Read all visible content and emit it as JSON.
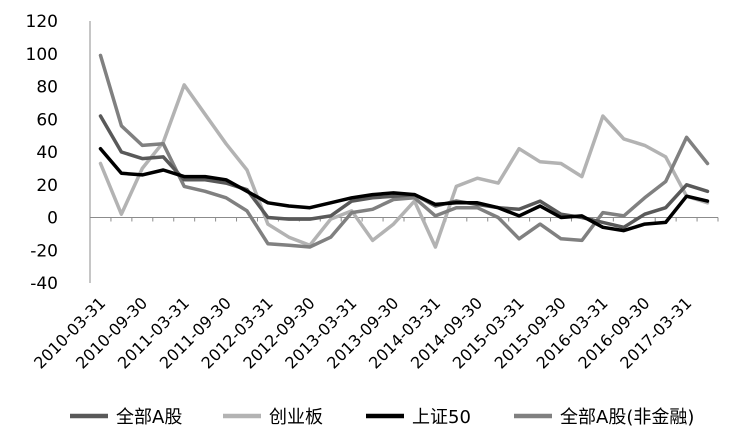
{
  "chart_data": {
    "type": "line",
    "title": "",
    "xlabel": "",
    "ylabel": "",
    "ylim": [
      -40,
      120
    ],
    "yticks": [
      -40,
      -20,
      0,
      20,
      40,
      60,
      80,
      100,
      120
    ],
    "grid": false,
    "legend_position": "bottom",
    "x": [
      "2010-03-31",
      "2010-06-30",
      "2010-09-30",
      "2010-12-31",
      "2011-03-31",
      "2011-06-30",
      "2011-09-30",
      "2011-12-31",
      "2012-03-31",
      "2012-06-30",
      "2012-09-30",
      "2012-12-31",
      "2013-03-31",
      "2013-06-30",
      "2013-09-30",
      "2013-12-31",
      "2014-03-31",
      "2014-06-30",
      "2014-09-30",
      "2014-12-31",
      "2015-03-31",
      "2015-06-30",
      "2015-09-30",
      "2015-12-31",
      "2016-03-31",
      "2016-06-30",
      "2016-09-30",
      "2016-12-31",
      "2017-03-31",
      "2017-06-30"
    ],
    "x_tick_labels": [
      "2010-03-31",
      "2010-09-30",
      "2011-03-31",
      "2011-09-30",
      "2012-03-31",
      "2012-09-30",
      "2013-03-31",
      "2013-09-30",
      "2014-03-31",
      "2014-09-30",
      "2015-03-31",
      "2015-09-30",
      "2016-03-31",
      "2016-09-30",
      "2017-03-31"
    ],
    "series": [
      {
        "name": "全部A股",
        "color": "#595959",
        "width": 3.5,
        "values": [
          62,
          40,
          36,
          37,
          23,
          23,
          21,
          17,
          0,
          -1,
          -1,
          1,
          10,
          12,
          13,
          14,
          7,
          10,
          8,
          6,
          5,
          10,
          2,
          0,
          -3,
          -6,
          2,
          6,
          20,
          16
        ]
      },
      {
        "name": "创业板",
        "color": "#b3b3b3",
        "width": 3.5,
        "values": [
          33,
          2,
          30,
          46,
          81,
          63,
          45,
          29,
          -4,
          -12,
          -17,
          -1,
          4,
          -14,
          -4,
          10,
          -18,
          19,
          24,
          21,
          42,
          34,
          33,
          25,
          62,
          48,
          44,
          37,
          13,
          9
        ]
      },
      {
        "name": "上证50",
        "color": "#000000",
        "width": 3.5,
        "values": [
          42,
          27,
          26,
          29,
          25,
          25,
          23,
          16,
          9,
          7,
          6,
          9,
          12,
          14,
          15,
          14,
          8,
          9,
          9,
          6,
          1,
          7,
          0,
          1,
          -6,
          -8,
          -4,
          -3,
          13,
          10
        ]
      },
      {
        "name": "全部A股(非金融)",
        "color": "#808080",
        "width": 3.5,
        "values": [
          99,
          56,
          44,
          45,
          19,
          16,
          12,
          4,
          -16,
          -17,
          -18,
          -12,
          3,
          5,
          11,
          12,
          1,
          6,
          6,
          0,
          -13,
          -4,
          -13,
          -14,
          3,
          1,
          12,
          22,
          49,
          33
        ]
      }
    ]
  }
}
